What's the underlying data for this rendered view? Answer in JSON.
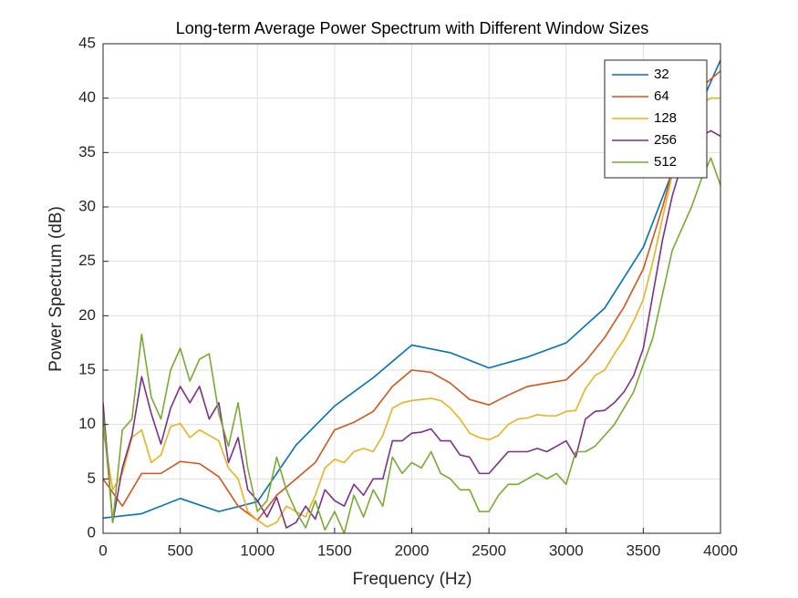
{
  "chart_data": {
    "type": "line",
    "title": "Long-term Average Power Spectrum with Different Window Sizes",
    "x_label": "Frequency (Hz)",
    "y_label": "Power Spectrum (dB)",
    "xlim": [
      0,
      4000
    ],
    "ylim": [
      0,
      45
    ],
    "xticks": [
      0,
      500,
      1000,
      1500,
      2000,
      2500,
      3000,
      3500,
      4000
    ],
    "yticks": [
      0,
      5,
      10,
      15,
      20,
      25,
      30,
      35,
      40,
      45
    ],
    "grid": true,
    "legend_position": "top-right",
    "series": [
      {
        "name": "32",
        "color": "#0072BD",
        "x": [
          0,
          250,
          500,
          750,
          1000,
          1250,
          1500,
          1750,
          2000,
          2250,
          2500,
          2750,
          3000,
          3250,
          3500,
          3750,
          4000
        ],
        "values": [
          1.4,
          1.8,
          3.2,
          2.0,
          2.9,
          8.1,
          11.7,
          14.3,
          17.3,
          16.6,
          15.2,
          16.2,
          17.5,
          20.7,
          26.3,
          35.5,
          43.5
        ]
      },
      {
        "name": "64",
        "color": "#D95319",
        "x": [
          0,
          125,
          250,
          375,
          500,
          625,
          750,
          875,
          1000,
          1125,
          1250,
          1375,
          1500,
          1625,
          1750,
          1875,
          2000,
          2125,
          2250,
          2375,
          2500,
          2625,
          2750,
          2875,
          3000,
          3125,
          3250,
          3375,
          3500,
          3625,
          3750,
          3875,
          4000
        ],
        "values": [
          5.0,
          2.5,
          5.5,
          5.5,
          6.6,
          6.4,
          5.2,
          2.5,
          1.2,
          3.5,
          5.0,
          6.5,
          9.5,
          10.2,
          11.2,
          13.5,
          15.0,
          14.8,
          13.8,
          12.3,
          11.8,
          12.7,
          13.5,
          13.8,
          14.1,
          15.8,
          18.0,
          20.8,
          24.3,
          30.0,
          36.5,
          41.0,
          42.5
        ]
      },
      {
        "name": "128",
        "color": "#EDB120",
        "x": [
          0,
          62.5,
          125,
          187.5,
          250,
          312.5,
          375,
          437.5,
          500,
          562.5,
          625,
          687.5,
          750,
          812.5,
          875,
          937.5,
          1000,
          1062.5,
          1125,
          1187.5,
          1250,
          1312.5,
          1375,
          1437.5,
          1500,
          1562.5,
          1625,
          1687.5,
          1750,
          1812.5,
          1875,
          1937.5,
          2000,
          2062.5,
          2125,
          2187.5,
          2250,
          2312.5,
          2375,
          2437.5,
          2500,
          2562.5,
          2625,
          2687.5,
          2750,
          2812.5,
          2875,
          2937.5,
          3000,
          3062.5,
          3125,
          3187.5,
          3250,
          3312.5,
          3375,
          3437.5,
          3500,
          3562.5,
          3625,
          3687.5,
          3750,
          3812.5,
          3875,
          3937.5,
          4000
        ],
        "values": [
          9.5,
          4.0,
          5.5,
          8.8,
          9.5,
          6.5,
          7.2,
          9.8,
          10.1,
          8.8,
          9.5,
          9.0,
          8.5,
          6.0,
          5.0,
          2.0,
          1.2,
          0.6,
          1.0,
          2.5,
          2.0,
          1.5,
          3.5,
          6.0,
          6.8,
          6.5,
          7.5,
          7.8,
          7.5,
          9.0,
          11.5,
          12.0,
          12.2,
          12.3,
          12.4,
          12.2,
          11.5,
          10.5,
          9.2,
          8.8,
          8.6,
          9.0,
          10.0,
          10.5,
          10.6,
          10.9,
          10.8,
          10.8,
          11.2,
          11.3,
          13.3,
          14.5,
          15.0,
          16.5,
          17.8,
          19.5,
          21.5,
          25.0,
          29.0,
          33.0,
          36.0,
          38.0,
          39.5,
          40.0,
          40.0
        ]
      },
      {
        "name": "256",
        "color": "#7E2F8E",
        "x": [
          0,
          62.5,
          125,
          187.5,
          250,
          312.5,
          375,
          437.5,
          500,
          562.5,
          625,
          687.5,
          750,
          812.5,
          875,
          937.5,
          1000,
          1062.5,
          1125,
          1187.5,
          1250,
          1312.5,
          1375,
          1437.5,
          1500,
          1562.5,
          1625,
          1687.5,
          1750,
          1812.5,
          1875,
          1937.5,
          2000,
          2062.5,
          2125,
          2187.5,
          2250,
          2312.5,
          2375,
          2437.5,
          2500,
          2562.5,
          2625,
          2687.5,
          2750,
          2812.5,
          2875,
          2937.5,
          3000,
          3062.5,
          3125,
          3187.5,
          3250,
          3312.5,
          3375,
          3437.5,
          3500,
          3562.5,
          3625,
          3687.5,
          3750,
          3812.5,
          3875,
          3937.5,
          4000
        ],
        "values": [
          12.0,
          1.0,
          6.0,
          9.0,
          14.4,
          11.0,
          8.2,
          11.5,
          13.5,
          12.0,
          13.5,
          10.5,
          12.0,
          6.5,
          8.8,
          4.0,
          3.0,
          1.5,
          3.3,
          0.5,
          1.0,
          2.5,
          1.3,
          4.0,
          3.0,
          2.5,
          4.5,
          3.5,
          5.0,
          5.0,
          8.5,
          8.5,
          9.2,
          9.3,
          9.6,
          8.5,
          8.5,
          7.2,
          7.0,
          5.5,
          5.5,
          6.5,
          7.5,
          7.5,
          7.5,
          7.8,
          7.5,
          8.0,
          8.5,
          7.0,
          10.5,
          11.2,
          11.3,
          12.0,
          13.0,
          14.5,
          17.0,
          22.0,
          27.0,
          31.0,
          34.0,
          35.5,
          36.5,
          37.0,
          36.5
        ]
      },
      {
        "name": "512",
        "color": "#77AC30",
        "x": [
          0,
          62.5,
          125,
          187.5,
          250,
          312.5,
          375,
          437.5,
          500,
          562.5,
          625,
          687.5,
          750,
          812.5,
          875,
          937.5,
          1000,
          1062.5,
          1125,
          1187.5,
          1250,
          1312.5,
          1375,
          1437.5,
          1500,
          1562.5,
          1625,
          1687.5,
          1750,
          1812.5,
          1875,
          1937.5,
          2000,
          2062.5,
          2125,
          2187.5,
          2250,
          2312.5,
          2375,
          2437.5,
          2500,
          2562.5,
          2625,
          2687.5,
          2750,
          2812.5,
          2875,
          2937.5,
          3000,
          3062.5,
          3125,
          3187.5,
          3250,
          3312.5,
          3375,
          3437.5,
          3500,
          3562.5,
          3625,
          3687.5,
          3750,
          3812.5,
          3875,
          3937.5,
          4000
        ],
        "values": [
          11.0,
          1.0,
          9.5,
          10.5,
          18.3,
          12.5,
          10.5,
          15.0,
          17.0,
          14.0,
          16.0,
          16.5,
          11.0,
          8.0,
          12.0,
          6.0,
          2.0,
          3.0,
          7.0,
          4.0,
          2.0,
          0.5,
          3.0,
          0.3,
          2.0,
          0,
          3.5,
          1.5,
          4.0,
          2.5,
          7.0,
          5.5,
          6.5,
          6.0,
          7.5,
          5.5,
          5.0,
          4.0,
          4.0,
          2.0,
          2.0,
          3.5,
          4.5,
          4.5,
          5.0,
          5.5,
          5.0,
          5.5,
          4.5,
          7.5,
          7.5,
          8.0,
          9.0,
          10.0,
          11.5,
          13.0,
          15.5,
          18.0,
          22.0,
          26.0,
          28.0,
          30.0,
          32.5,
          34.5,
          32.0
        ]
      }
    ]
  }
}
